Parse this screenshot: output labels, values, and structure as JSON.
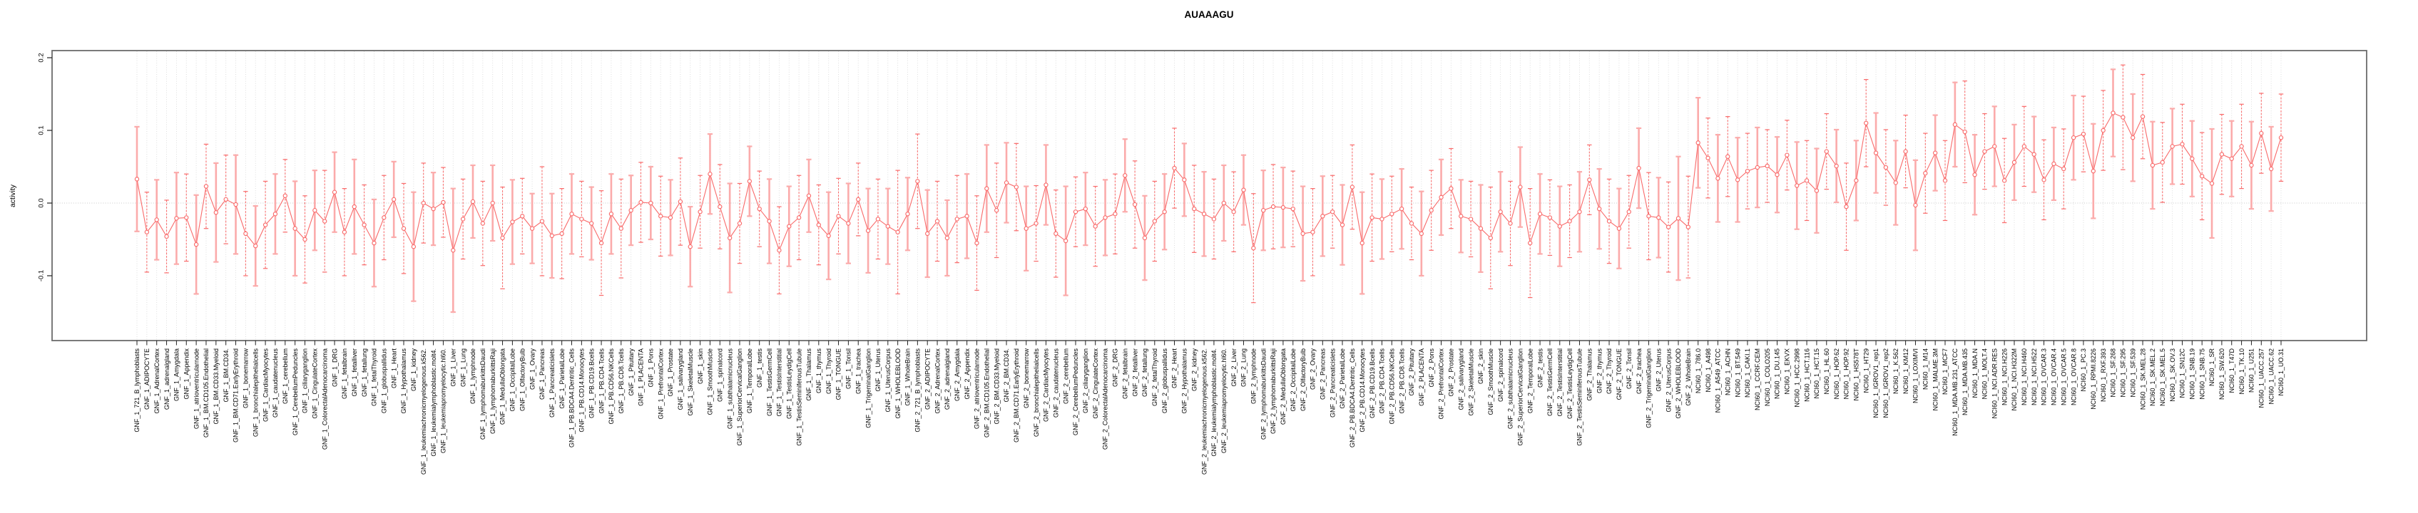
{
  "title": "AUAAAGU",
  "chart_data": {
    "type": "line",
    "subtype": "points-with-error-bars",
    "title": "AUAAAGU",
    "xlabel": "",
    "ylabel": "activity",
    "ylim": [
      -0.19,
      0.21
    ],
    "yticks": [
      0.2,
      0.1,
      0.0,
      -0.1
    ],
    "grid": "vertical dotted gridline at every category; dotted horizontal line at y=0",
    "legend_position": "none",
    "categories": [
      "GNF_1_721_B_lymphoblasts",
      "GNF_1_ADIPOCYTE",
      "GNF_1_AdrenalCortex",
      "GNF_1_adrenalgland",
      "GNF_1_Amygdala",
      "GNF_1_Appendix",
      "GNF_1_atrioventricularnode",
      "GNF_1_BM.CD105.Endothelial",
      "GNF_1_BM.CD33.Myeloid",
      "GNF_1_BM.CD34.",
      "GNF_1_BM.CD71.EarlyErythroid",
      "GNF_1_bonemarrow",
      "GNF_1_bronchialepithelialcells",
      "GNF_1_CardiacMyocytes",
      "GNF_1_caudatenucleus",
      "GNF_1_cerebellum",
      "GNF_1_CerebellumPeduncles",
      "GNF_1_ciliaryganglion",
      "GNF_1_CingulateCortex",
      "GNF_1_ColorectalAdenocarcinoma",
      "GNF_1_DRG",
      "GNF_1_fetalbrain",
      "GNF_1_fetalliver",
      "GNF_1_fetallung",
      "GNF_1_fetalThyroid",
      "GNF_1_globuspallidus",
      "GNF_1_Heart",
      "GNF_1_Hypothalamus",
      "GNF_1_kidney",
      "GNF_1_leukemiachronicmyelogenous.k562.",
      "GNF_1_leukemialymphoblastic.molt4.",
      "GNF_1_leukemiapromyelocytic.hl60.",
      "GNF_1_Liver",
      "GNF_1_Lung",
      "GNF_1_lymphnode",
      "GNF_1_lymphomaburkittsDaudi",
      "GNF_1_lymphomaburkittsRaji",
      "GNF_1_MedullaOblongata",
      "GNF_1_OccipitalLobe",
      "GNF_1_OlfactoryBulb",
      "GNF_1_Ovary",
      "GNF_1_Pancreas",
      "GNF_1_Pancreaticislets",
      "GNF_1_ParietalLobe",
      "GNF_1_PB.BDCA4.Dentritic_Cells",
      "GNF_1_PB.CD14.Monocytes",
      "GNF_1_PB.CD19.Bcells",
      "GNF_1_PB.CD4.Tcells",
      "GNF_1_PB.CD56.NKCells",
      "GNF_1_PB.CD8.Tcells",
      "GNF_1_Pituitary",
      "GNF_1_PLACENTA",
      "GNF_1_Pons",
      "GNF_1_PrefrontalCortex",
      "GNF_1_Prostate",
      "GNF_1_salivarygland",
      "GNF_1_SkeletalMuscle",
      "GNF_1_skin",
      "GNF_1_SmoothMuscle",
      "GNF_1_spinalcord",
      "GNF_1_subthalamicnucleus",
      "GNF_1_SuperiorCervicalGanglion",
      "GNF_1_TemporalLobe",
      "GNF_1_testis",
      "GNF_1_TestisGermCell",
      "GNF_1_TestisInterstitial",
      "GNF_1_TestisLeydigCell",
      "GNF_1_TestisSeminiferousTubule",
      "GNF_1_Thalamus",
      "GNF_1_thymus",
      "GNF_1_Thyroid",
      "GNF_1_TONGUE",
      "GNF_1_Tonsil",
      "GNF_1_trachea",
      "GNF_1_TrigeminalGanglion",
      "GNF_1_Uterus",
      "GNF_1_UterusCorpus",
      "GNF_1_WHOLEBLOOD",
      "GNF_1_WholeBrain",
      "GNF_2_721_B_lymphoblasts",
      "GNF_2_ADIPOCYTE",
      "GNF_2_AdrenalCortex",
      "GNF_2_adrenalgland",
      "GNF_2_Amygdala",
      "GNF_2_Appendix",
      "GNF_2_atrioventricularnode",
      "GNF_2_BM.CD105.Endothelial",
      "GNF_2_BM.CD33.Myeloid",
      "GNF_2_BM.CD34.",
      "GNF_2_BM.CD71.EarlyErythroid",
      "GNF_2_bonemarrow",
      "GNF_2_bronchialepithelialcells",
      "GNF_2_CardiacMyocytes",
      "GNF_2_caudatenucleus",
      "GNF_2_cerebellum",
      "GNF_2_CerebellumPeduncles",
      "GNF_2_ciliaryganglion",
      "GNF_2_CingulateCortex",
      "GNF_2_ColorectalAdenocarcinoma",
      "GNF_2_DRG",
      "GNF_2_fetalbrain",
      "GNF_2_fetalliver",
      "GNF_2_fetallung",
      "GNF_2_fetalThyroid",
      "GNF_2_globuspallidus",
      "GNF_2_Heart",
      "GNF_2_Hypothalamus",
      "GNF_2_kidney",
      "GNF_2_leukemiachronicmyelogenous.k562.",
      "GNF_2_leukemialymphoblastic.molt4.",
      "GNF_2_leukemiapromyelocytic.hl60.",
      "GNF_2_Liver",
      "GNF_2_Lung",
      "GNF_2_lymphnode",
      "GNF_2_lymphomaburkittsDaudi",
      "GNF_2_lymphomaburkittsRaji",
      "GNF_2_MedullaOblongata",
      "GNF_2_OccipitalLobe",
      "GNF_2_OlfactoryBulb",
      "GNF_2_Ovary",
      "GNF_2_Pancreas",
      "GNF_2_Pancreaticislets",
      "GNF_2_ParietalLobe",
      "GNF_2_PB.BDCA4.Dentritic_Cells",
      "GNF_2_PB.CD14.Monocytes",
      "GNF_2_PB.CD19.Bcells",
      "GNF_2_PB.CD4.Tcells",
      "GNF_2_PB.CD56.NKCells",
      "GNF_2_PB.CD8.Tcells",
      "GNF_2_Pituitary",
      "GNF_2_PLACENTA",
      "GNF_2_Pons",
      "GNF_2_PrefrontalCortex",
      "GNF_2_Prostate",
      "GNF_2_salivarygland",
      "GNF_2_SkeletalMuscle",
      "GNF_2_skin",
      "GNF_2_SmoothMuscle",
      "GNF_2_spinalcord",
      "GNF_2_subthalamicnucleus",
      "GNF_2_SuperiorCervicalGanglion",
      "GNF_2_TemporalLobe",
      "GNF_2_testis",
      "GNF_2_TestisGermCell",
      "GNF_2_TestisInterstitial",
      "GNF_2_TestisLeydigCell",
      "GNF_2_TestisSeminiferousTubule",
      "GNF_2_Thalamus",
      "GNF_2_thymus",
      "GNF_2_Thyroid",
      "GNF_2_TONGUE",
      "GNF_2_Tonsil",
      "GNF_2_trachea",
      "GNF_2_TrigeminalGanglion",
      "GNF_2_Uterus",
      "GNF_2_UterusCorpus",
      "GNF_2_WHOLEBLOOD",
      "GNF_2_WholeBrain",
      "NCI60_1_786.0",
      "NCI60_1_A498",
      "NCI60_1_A549_ATCC",
      "NCI60_1_ACHN",
      "NCI60_1_BT.549",
      "NCI60_1_CAKI.1",
      "NCI60_1_CCRF.CEM",
      "NCI60_1_COLO205",
      "NCI60_1_DU.145",
      "NCI60_1_EKVX",
      "NCI60_1_HCC.2998",
      "NCI60_1_HCT.116",
      "NCI60_1_HCT.15",
      "NCI60_1_HL.60",
      "NCI60_1_HOP.62",
      "NCI60_1_HOP.92",
      "NCI60_1_HS578T",
      "NCI60_1_HT29",
      "NCI60_1_IGROV1_rep1",
      "NCI60_1_IGROV1_rep2",
      "NCI60_1_K.562",
      "NCI60_1_KM12",
      "NCI60_1_LOXIMVI",
      "NCI60_1_M14",
      "NCI60_1_MALME.3M",
      "NCI60_1_MCF7",
      "NCI60_1_MDA.MB.231_ATCC",
      "NCI60_1_MDA.MB.435",
      "NCI60_1_MDA.N",
      "NCI60_1_MOLT.4",
      "NCI60_1_NCI.ADR.RES",
      "NCI60_1_NCI.H226",
      "NCI60_1_NCI.H322M",
      "NCI60_1_NCI.H460",
      "NCI60_1_NCI.H522",
      "NCI60_1_OVCAR.3",
      "NCI60_1_OVCAR.4",
      "NCI60_1_OVCAR.5",
      "NCI60_1_OVCAR.8",
      "NCI60_1_PC.3",
      "NCI60_1_RPMI.8226",
      "NCI60_1_RXF.393",
      "NCI60_1_SF.268",
      "NCI60_1_SF.295",
      "NCI60_1_SF.539",
      "NCI60_1_SK.MEL.28",
      "NCI60_1_SK.MEL.2",
      "NCI60_1_SK.MEL.5",
      "NCI60_1_SK.OV.3",
      "NCI60_1_SN12C",
      "NCI60_1_SNB.19",
      "NCI60_1_SNB.75",
      "NCI60_1_SR",
      "NCI60_1_SW.620",
      "NCI60_1_T47D",
      "NCI60_1_TK.10",
      "NCI60_1_U251",
      "NCI60_1_UACC.257",
      "NCI60_1_UACC.62",
      "NCI60_1_UO.31"
    ],
    "series": [
      {
        "name": "activity",
        "values": [
          0.033,
          -0.04,
          -0.023,
          -0.046,
          -0.021,
          -0.02,
          -0.057,
          0.023,
          -0.013,
          0.005,
          -0.002,
          -0.042,
          -0.059,
          -0.03,
          -0.015,
          0.01,
          -0.035,
          -0.05,
          -0.01,
          -0.025,
          0.015,
          -0.04,
          -0.005,
          -0.03,
          -0.055,
          -0.02,
          0.005,
          -0.035,
          -0.06,
          0.0,
          -0.008,
          0.001,
          -0.065,
          -0.022,
          0.002,
          -0.028,
          0.0,
          -0.048,
          -0.026,
          -0.018,
          -0.035,
          -0.025,
          -0.045,
          -0.042,
          -0.015,
          -0.022,
          -0.028,
          -0.055,
          -0.015,
          -0.035,
          -0.01,
          0.001,
          0.0,
          -0.018,
          -0.02,
          0.002,
          -0.06,
          -0.012,
          0.04,
          -0.005,
          -0.048,
          -0.028,
          0.03,
          -0.008,
          -0.025,
          -0.065,
          -0.032,
          -0.02,
          0.01,
          -0.03,
          -0.045,
          -0.018,
          -0.028,
          0.005,
          -0.038,
          -0.022,
          -0.032,
          -0.04,
          -0.015,
          0.03,
          -0.042,
          -0.025,
          -0.048,
          -0.022,
          -0.018,
          -0.055,
          0.02,
          -0.01,
          0.028,
          0.022,
          -0.035,
          -0.028,
          0.025,
          -0.042,
          -0.052,
          -0.012,
          -0.008,
          -0.032,
          -0.02,
          -0.015,
          0.038,
          -0.002,
          -0.048,
          -0.025,
          -0.012,
          0.048,
          0.032,
          -0.008,
          -0.015,
          -0.022,
          0.0,
          -0.012,
          0.018,
          -0.062,
          -0.01,
          -0.005,
          -0.006,
          -0.008,
          -0.042,
          -0.04,
          -0.018,
          -0.012,
          -0.03,
          0.022,
          -0.055,
          -0.02,
          -0.022,
          -0.015,
          -0.008,
          -0.028,
          -0.042,
          -0.01,
          0.008,
          0.02,
          -0.018,
          -0.022,
          -0.035,
          -0.048,
          -0.012,
          -0.028,
          0.022,
          -0.055,
          -0.015,
          -0.02,
          -0.032,
          -0.025,
          -0.012,
          0.032,
          -0.008,
          -0.025,
          -0.035,
          -0.012,
          0.048,
          -0.018,
          -0.02,
          -0.033,
          -0.021,
          -0.033,
          0.083,
          0.062,
          0.034,
          0.064,
          0.032,
          0.044,
          0.049,
          0.051,
          0.039,
          0.066,
          0.024,
          0.031,
          0.017,
          0.071,
          0.051,
          -0.005,
          0.031,
          0.11,
          0.069,
          0.049,
          0.028,
          0.071,
          -0.003,
          0.041,
          0.069,
          0.031,
          0.108,
          0.098,
          0.039,
          0.071,
          0.078,
          0.031,
          0.056,
          0.078,
          0.067,
          0.032,
          0.054,
          0.047,
          0.09,
          0.095,
          0.044,
          0.1,
          0.124,
          0.118,
          0.09,
          0.119,
          0.052,
          0.056,
          0.078,
          0.081,
          0.061,
          0.037,
          0.027,
          0.067,
          0.061,
          0.078,
          0.052,
          0.096,
          0.047,
          0.09
        ],
        "errors": [
          0.072,
          0.055,
          0.055,
          0.05,
          0.063,
          0.06,
          0.068,
          0.058,
          0.068,
          0.061,
          0.068,
          0.058,
          0.055,
          0.06,
          0.055,
          0.05,
          0.065,
          0.06,
          0.055,
          0.07,
          0.055,
          0.06,
          0.065,
          0.055,
          0.06,
          0.058,
          0.052,
          0.062,
          0.075,
          0.055,
          0.05,
          0.048,
          0.085,
          0.055,
          0.05,
          0.058,
          0.052,
          0.07,
          0.058,
          0.052,
          0.048,
          0.075,
          0.058,
          0.062,
          0.055,
          0.052,
          0.05,
          0.072,
          0.055,
          0.068,
          0.048,
          0.055,
          0.05,
          0.055,
          0.052,
          0.06,
          0.055,
          0.05,
          0.055,
          0.058,
          0.075,
          0.055,
          0.048,
          0.052,
          0.058,
          0.06,
          0.055,
          0.058,
          0.05,
          0.055,
          0.06,
          0.052,
          0.055,
          0.05,
          0.058,
          0.055,
          0.052,
          0.085,
          0.05,
          0.065,
          0.06,
          0.055,
          0.052,
          0.06,
          0.058,
          0.065,
          0.06,
          0.065,
          0.055,
          0.06,
          0.058,
          0.052,
          0.055,
          0.06,
          0.075,
          0.048,
          0.05,
          0.055,
          0.052,
          0.055,
          0.05,
          0.06,
          0.058,
          0.055,
          0.052,
          0.055,
          0.05,
          0.06,
          0.058,
          0.055,
          0.052,
          0.055,
          0.048,
          0.075,
          0.055,
          0.058,
          0.055,
          0.052,
          0.065,
          0.06,
          0.055,
          0.05,
          0.055,
          0.058,
          0.07,
          0.06,
          0.055,
          0.052,
          0.055,
          0.05,
          0.058,
          0.055,
          0.052,
          0.055,
          0.05,
          0.052,
          0.06,
          0.07,
          0.055,
          0.058,
          0.055,
          0.075,
          0.055,
          0.052,
          0.055,
          0.05,
          0.055,
          0.048,
          0.055,
          0.058,
          0.055,
          0.05,
          0.055,
          0.06,
          0.055,
          0.062,
          0.085,
          0.07,
          0.062,
          0.055,
          0.06,
          0.055,
          0.058,
          0.052,
          0.055,
          0.05,
          0.052,
          0.048,
          0.06,
          0.055,
          0.058,
          0.052,
          0.05,
          0.06,
          0.055,
          0.06,
          0.055,
          0.052,
          0.058,
          0.05,
          0.062,
          0.055,
          0.052,
          0.055,
          0.058,
          0.07,
          0.055,
          0.052,
          0.055,
          0.058,
          0.052,
          0.055,
          0.052,
          0.055,
          0.05,
          0.055,
          0.058,
          0.052,
          0.065,
          0.055,
          0.06,
          0.072,
          0.06,
          0.058,
          0.06,
          0.055,
          0.052,
          0.055,
          0.052,
          0.06,
          0.075,
          0.055,
          0.052,
          0.058,
          0.06,
          0.055,
          0.058,
          0.06
        ]
      }
    ],
    "colors": {
      "point": "#f96a6a",
      "line": "#f96a6a",
      "errorbar_thin": "#f96a6a",
      "errorbar_thick": "#fbabab",
      "gridline": "#dadada",
      "zero_line": "#c8c8c8",
      "box": "#6b6b6b",
      "tick": "#222222",
      "text": "#000000"
    }
  }
}
